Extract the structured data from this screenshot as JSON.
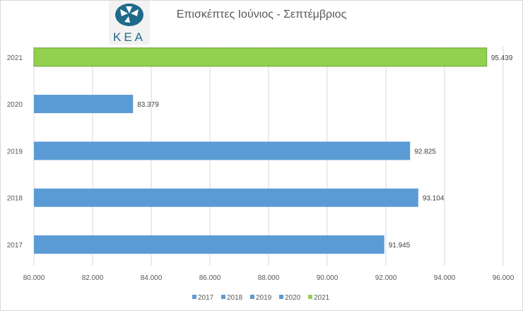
{
  "chart_data": {
    "type": "bar",
    "orientation": "horizontal",
    "title": "Επισκέπτες Ιούνιος - Σεπτέμβριος",
    "categories": [
      "2017",
      "2018",
      "2019",
      "2020",
      "2021"
    ],
    "values": [
      91945,
      93104,
      92825,
      83379,
      95439
    ],
    "data_labels": [
      "91.945",
      "93.104",
      "92.825",
      "83.379",
      "95.439"
    ],
    "colors": [
      "#5b9bd5",
      "#5b9bd5",
      "#5b9bd5",
      "#5b9bd5",
      "#92d050"
    ],
    "xlim": [
      80000,
      96000
    ],
    "x_ticks": [
      80000,
      82000,
      84000,
      86000,
      88000,
      90000,
      92000,
      94000,
      96000
    ],
    "x_tick_labels": [
      "80.000",
      "82.000",
      "84.000",
      "86.000",
      "88.000",
      "90.000",
      "92.000",
      "94.000",
      "96.000"
    ],
    "legend": [
      "2017",
      "2018",
      "2019",
      "2020",
      "2021"
    ],
    "legend_position": "bottom",
    "grid": "vertical"
  },
  "logo": {
    "text": "ΚΕΑ",
    "icon": "kea-logo"
  }
}
